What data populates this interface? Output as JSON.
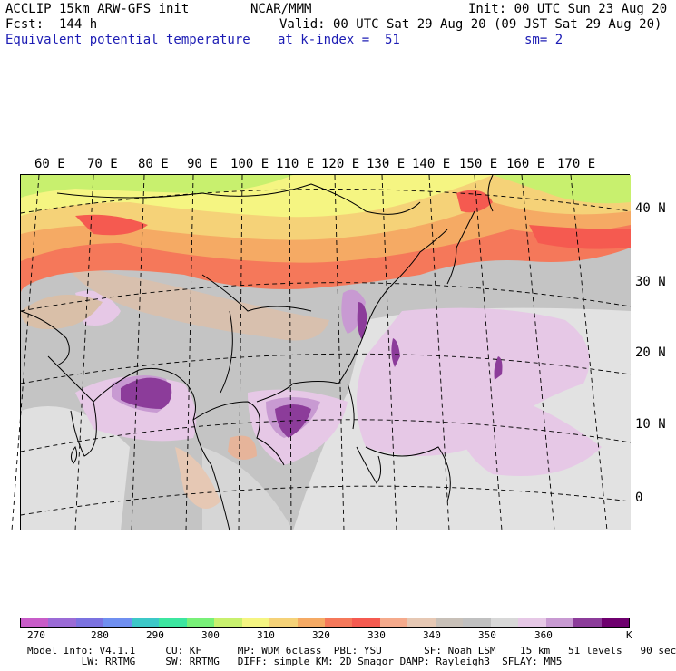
{
  "header": {
    "model": "ACCLIP 15km ARW-GFS init",
    "org": "NCAR/MMM",
    "init": "Init: 00 UTC Sun 23 Aug 20",
    "fcst": "Fcst:  144 h",
    "valid": "Valid: 00 UTC Sat 29 Aug 20 (09 JST Sat 29 Aug 20)",
    "field": "Equivalent potential temperature",
    "level": "at k-index =  51",
    "smooth": "sm= 2"
  },
  "map": {
    "lon_labels": [
      "60 E",
      "70 E",
      "80 E",
      "90 E",
      "100 E",
      "110 E",
      "120 E",
      "130 E",
      "140 E",
      "150 E",
      "160 E",
      "170 E"
    ],
    "lat_labels": [
      "40 N",
      "30 N",
      "20 N",
      "10 N",
      "0"
    ]
  },
  "colorbar": {
    "unit": "K",
    "tick_labels": [
      "270",
      "280",
      "290",
      "300",
      "310",
      "320",
      "330",
      "340",
      "350",
      "360"
    ],
    "colors": [
      "#c85cc8",
      "#9b6bd6",
      "#7b72e0",
      "#6f8ff0",
      "#3cc8c8",
      "#3ce6a0",
      "#78f078",
      "#c8f06e",
      "#f5f582",
      "#f5d278",
      "#f5aa64",
      "#f5785a",
      "#f55a50",
      "#f5aa8c",
      "#e6c8b4",
      "#c8c0b8",
      "#c0c0c0",
      "#d8d8d8",
      "#e6c8e6",
      "#c89ad2",
      "#8c3c9a",
      "#6e006e"
    ]
  },
  "footer": {
    "line1": "Model Info: V4.1.1     CU: KF      MP: WDM 6class  PBL: YSU       SF: Noah LSM    15 km   51 levels   90 sec",
    "line2": "         LW: RRTMG     SW: RRTMG   DIFF: simple KM: 2D Smagor DAMP: Rayleigh3  SFLAY: MM5"
  }
}
